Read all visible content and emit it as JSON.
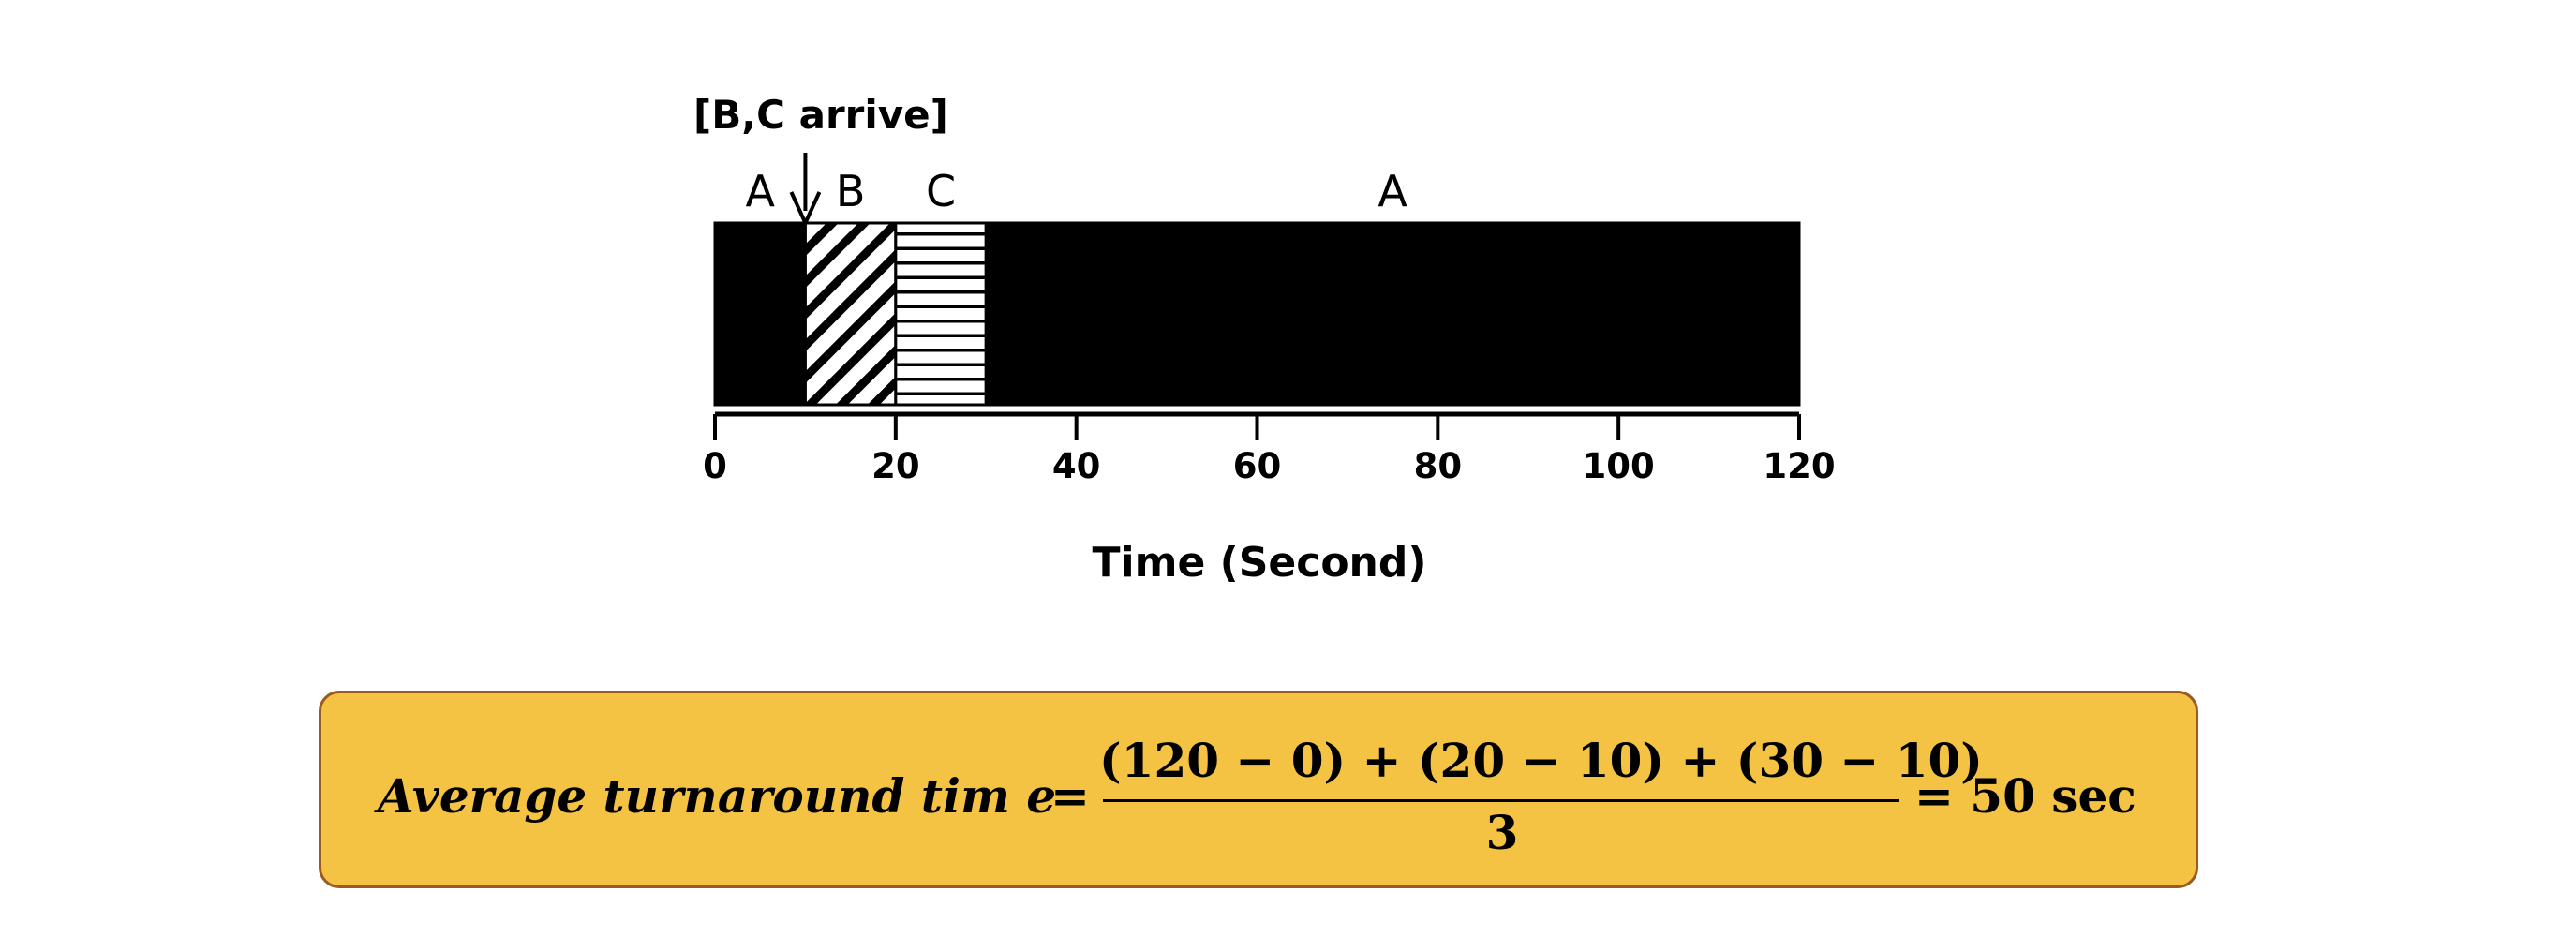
{
  "diagram": {
    "arrival_label": "[B,C arrive]",
    "axis_title": "Time (Second)",
    "x_range": [
      0,
      120
    ],
    "ticks": [
      "0",
      "20",
      "40",
      "60",
      "80",
      "100",
      "120"
    ],
    "segments": [
      {
        "job": "A",
        "start": 0,
        "end": 10,
        "pattern": "solid-black"
      },
      {
        "job": "B",
        "start": 10,
        "end": 20,
        "pattern": "diagonal-hatch"
      },
      {
        "job": "C",
        "start": 20,
        "end": 30,
        "pattern": "horizontal-hatch"
      },
      {
        "job": "A",
        "start": 30,
        "end": 120,
        "pattern": "solid-black"
      }
    ],
    "arrival_time": 10
  },
  "formula": {
    "lhs": "Average  turnaround   tim e",
    "equals": "=",
    "numerator": "(120 − 0) + (20 − 10) + (30 − 10)",
    "denominator": "3",
    "result": "= 50 sec"
  },
  "colors": {
    "formula_bg": "#f4c344",
    "formula_border": "#9a5a20",
    "bar_fill": "#000000"
  }
}
